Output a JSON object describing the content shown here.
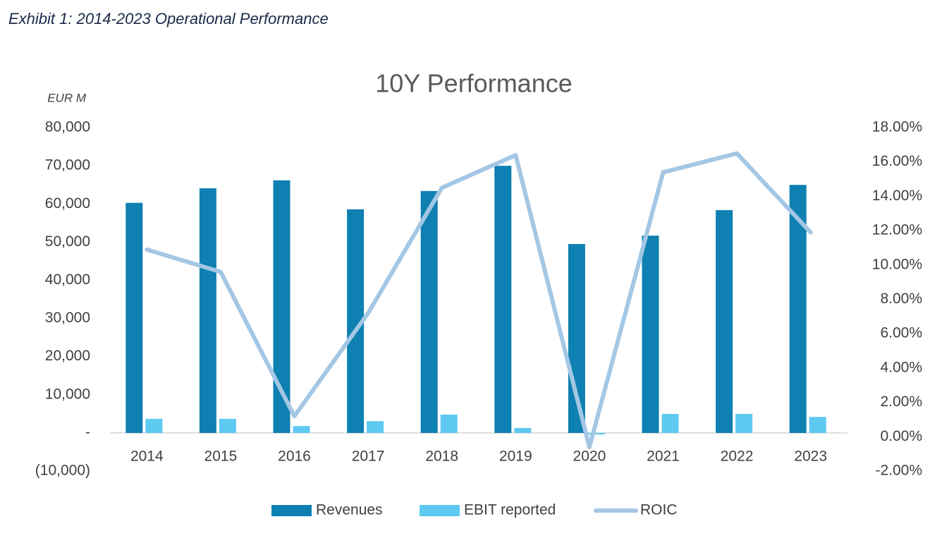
{
  "chart_data": {
    "type": "bar",
    "caption": "Exhibit 1: 2014-2023 Operational Performance",
    "title": "10Y Performance",
    "y_label": "EUR M",
    "categories": [
      "2014",
      "2015",
      "2016",
      "2017",
      "2018",
      "2019",
      "2020",
      "2021",
      "2022",
      "2023"
    ],
    "series": [
      {
        "name": "Revenues",
        "color": "#0e80b1",
        "values": [
          60300,
          64100,
          66200,
          58600,
          63400,
          70000,
          49500,
          51700,
          58400,
          65000
        ]
      },
      {
        "name": "EBIT reported",
        "color": "#5ec9f1",
        "values": [
          3700,
          3700,
          1800,
          3100,
          4800,
          1300,
          -400,
          5000,
          5000,
          4200
        ]
      },
      {
        "name": "ROIC",
        "color": "#a3c7e4",
        "type": "line",
        "axis": "y2",
        "values": [
          10.9,
          9.6,
          1.2,
          7.2,
          14.5,
          16.4,
          -0.6,
          15.4,
          16.5,
          11.9
        ]
      }
    ],
    "ylim": [
      -10000,
      80000
    ],
    "yticks": [
      {
        "value": -10000,
        "label": "(10,000)"
      },
      {
        "value": 0,
        "label": "-"
      },
      {
        "value": 10000,
        "label": "10,000"
      },
      {
        "value": 20000,
        "label": "20,000"
      },
      {
        "value": 30000,
        "label": "30,000"
      },
      {
        "value": 40000,
        "label": "40,000"
      },
      {
        "value": 50000,
        "label": "50,000"
      },
      {
        "value": 60000,
        "label": "60,000"
      },
      {
        "value": 70000,
        "label": "70,000"
      },
      {
        "value": 80000,
        "label": "80,000"
      }
    ],
    "y2lim": [
      -2,
      18
    ],
    "y2ticks": [
      {
        "value": -2,
        "label": "-2.00%"
      },
      {
        "value": 0,
        "label": "0.00%"
      },
      {
        "value": 2,
        "label": "2.00%"
      },
      {
        "value": 4,
        "label": "4.00%"
      },
      {
        "value": 6,
        "label": "6.00%"
      },
      {
        "value": 8,
        "label": "8.00%"
      },
      {
        "value": 10,
        "label": "10.00%"
      },
      {
        "value": 12,
        "label": "12.00%"
      },
      {
        "value": 14,
        "label": "14.00%"
      },
      {
        "value": 16,
        "label": "16.00%"
      },
      {
        "value": 18,
        "label": "18.00%"
      }
    ],
    "grid": false,
    "legend": "bottom"
  }
}
